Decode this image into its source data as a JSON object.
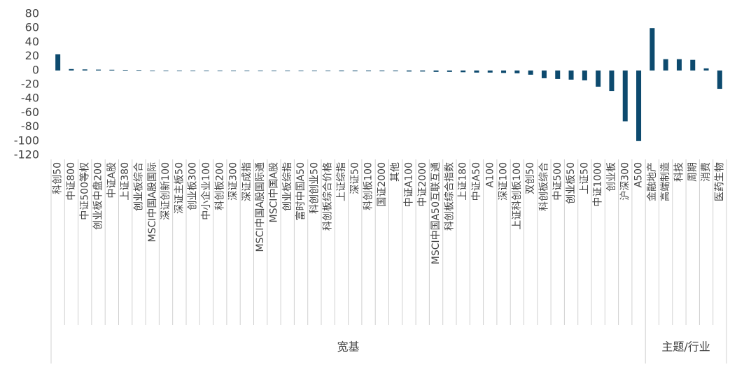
{
  "chart_data": {
    "type": "bar",
    "color": "#0d4a6e",
    "ylim": [
      -120,
      80
    ],
    "yticks": [
      -120,
      -100,
      -80,
      -60,
      -40,
      -20,
      0,
      20,
      40,
      60,
      80
    ],
    "groups": [
      {
        "name": "宽基",
        "categories": [
          "科创50",
          "中证800",
          "中证500等权",
          "创业板中盘200",
          "中证A股",
          "上证380",
          "创业板综合",
          "MSCI中国A股国际",
          "深证创新100",
          "深证主板50",
          "创业板300",
          "中小企业100",
          "科创板200",
          "深证300",
          "深证成指",
          "MSCI中国A股国际通",
          "MSCI中国A股",
          "创业板综指",
          "富时中国A50",
          "科创创业50",
          "科创板综合价格",
          "上证综指",
          "深证50",
          "科创板100",
          "国证2000",
          "其他",
          "中证A100",
          "中证2000",
          "MSCI中国A50互联互通",
          "科创板综合指数",
          "上证180",
          "中证A50",
          "A100",
          "深证100",
          "上证科创板100",
          "双创50",
          "科创板综合",
          "中证500",
          "创业板50",
          "上证50",
          "中证1000",
          "创业板",
          "沪深300",
          "A500"
        ],
        "values": [
          23,
          2,
          1.5,
          1.2,
          1,
          0.8,
          0.5,
          -0.5,
          -0.5,
          -0.5,
          -0.5,
          -0.5,
          -0.5,
          -0.5,
          -0.5,
          -0.5,
          -0.5,
          -0.7,
          -0.7,
          -0.8,
          -0.8,
          -1,
          -1,
          -1,
          -1,
          -1,
          -1.5,
          -1.5,
          -2,
          -2,
          -2.5,
          -3,
          -3,
          -3.5,
          -4,
          -6,
          -11,
          -12,
          -13,
          -14,
          -23,
          -29,
          -72,
          -100
        ]
      },
      {
        "name": "主题/行业",
        "categories": [
          "金融地产",
          "高端制造",
          "科技",
          "周期",
          "消费",
          "医药生物"
        ],
        "values": [
          60,
          16,
          16,
          15,
          3,
          -26
        ]
      }
    ]
  }
}
